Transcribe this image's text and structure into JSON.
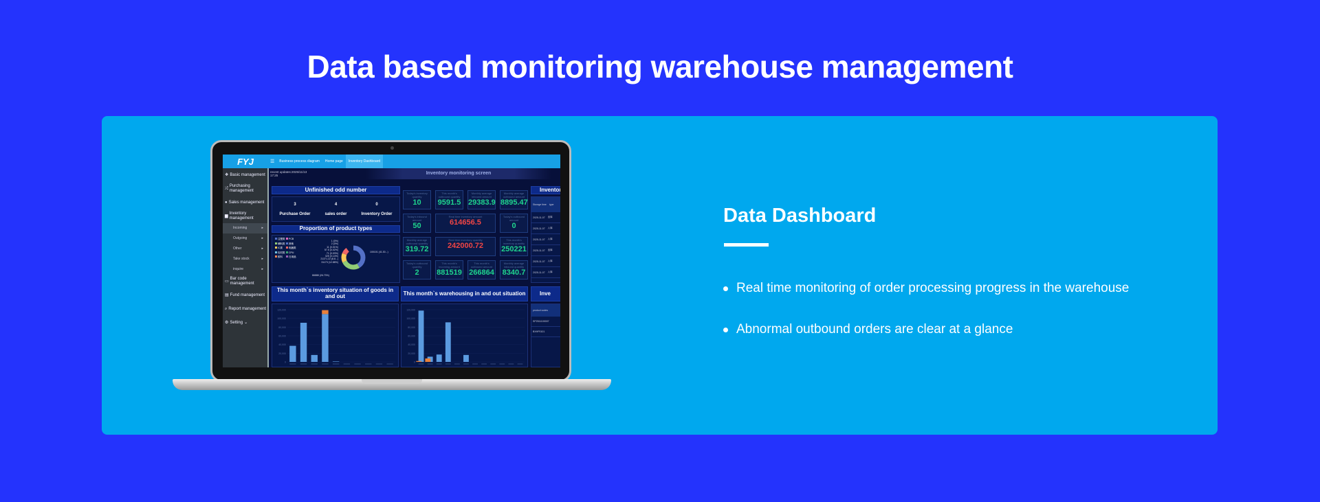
{
  "page_title": "Data based monitoring warehouse management",
  "feature": {
    "heading": "Data Dashboard",
    "bullets": [
      "Real time monitoring of order processing progress in the warehouse",
      "Abnormal outbound orders are clear at a glance"
    ]
  },
  "app": {
    "logo": "FYJ",
    "tabs": [
      "Business process diagram",
      "Home page",
      "Inventory Dashboard"
    ],
    "sidebar": [
      {
        "label": "Basic management",
        "icon": "cubes-icon"
      },
      {
        "label": "Purchasing management",
        "icon": "shuffle-icon"
      },
      {
        "label": "Sales management",
        "icon": "globe-icon"
      },
      {
        "label": "Inventory management",
        "icon": "truck-icon"
      }
    ],
    "sub_items": [
      "Incoming",
      "Outgoing",
      "Other",
      "Take stock",
      "inquire"
    ],
    "sidebar_bottom": [
      {
        "label": "Bar code management",
        "icon": "card-icon"
      },
      {
        "label": "Fund management",
        "icon": "calculator-icon"
      },
      {
        "label": "Report management",
        "icon": "search-icon"
      },
      {
        "label": "Setting",
        "icon": "gear-icon"
      }
    ],
    "updated": "recent updates:2025/11/13",
    "updated_time": "17:25",
    "screen_title": "Inventory monitoring screen",
    "unfinished": {
      "title": "Unfinished odd number",
      "items": [
        {
          "value": "3",
          "label": "Purchase Order"
        },
        {
          "value": "4",
          "label": "sales order"
        },
        {
          "value": "0",
          "label": "Inventory Order"
        }
      ]
    },
    "proportion": {
      "title": "Proportion of product types",
      "legend": [
        "注塑类",
        "PCB",
        "辅料类",
        "其他",
        "IC类",
        "电器类",
        "包材类",
        "CPU",
        "胶料",
        "日用品"
      ],
      "labels": [
        "1 (0%)",
        "2 (0%)",
        "11 (0.01%)",
        "57.5 (0.02%)",
        "71 (0.03%)",
        "325 (0.14%)",
        "21371.22 (8.8...)",
        "31173 (12.88%)",
        "86888 (26.73%)",
        "100101 (41.30...)"
      ]
    },
    "kpis": [
      {
        "label": "Today's inventory quantity",
        "value": "10"
      },
      {
        "label": "This month's outbound quantity",
        "value": "9591.5"
      },
      {
        "label": "Monthly average inbound amount",
        "value": "29383.9"
      },
      {
        "label": "Monthly average outbound amount",
        "value": "8895.47"
      },
      {
        "label": "Today's inbound amount",
        "value": "50"
      },
      {
        "label": "Real time inventory amount",
        "value": "614656.5"
      },
      {
        "label": "Today's outbound amount",
        "value": "0"
      },
      {
        "label": "Monthly average outbound quantity",
        "value": "319.72"
      },
      {
        "label": "Real time inventory quantity",
        "value": "242000.72"
      },
      {
        "label": "This month's inventory quantity",
        "value": "250221"
      },
      {
        "label": "Today's outbound quantity",
        "value": "2"
      },
      {
        "label": "This month's incoming amount",
        "value": "881519"
      },
      {
        "label": "This month's outbound amount",
        "value": "266864"
      },
      {
        "label": "Monthly average inbound quantity",
        "value": "8340.7"
      }
    ],
    "colors": {
      "kpi_green": "#1fd48e",
      "kpi_red": "#f04545",
      "bar_blue": "#5b9be0",
      "bar_orange": "#e8803a"
    },
    "right_panel": {
      "title": "Inventory",
      "headers": [
        "Storage time",
        "type"
      ],
      "rows": [
        [
          "2025-11-07",
          "出库"
        ],
        [
          "2025-11-07",
          "入库"
        ],
        [
          "2025-11-07",
          "入库"
        ],
        [
          "2025-11-07",
          "出库"
        ],
        [
          "2025-11-07",
          "入库"
        ],
        [
          "2025-11-07",
          "入库"
        ]
      ],
      "title2": "Inve",
      "headers2": [
        "product codes"
      ],
      "rows2": [
        "SP2511100007",
        "BXHP0101"
      ]
    },
    "chart_left_title": "This month`s inventory situation of goods in and out",
    "chart_right_title": "This month`s warehousing in and out situation"
  },
  "chart_data": [
    {
      "type": "bar",
      "title": "This month`s inventory situation of goods in and out",
      "ylim": [
        0,
        120000
      ],
      "yticks": [
        "0",
        "20,000",
        "40,000",
        "60,000",
        "80,000",
        "100,000",
        "120,000"
      ],
      "series": [
        {
          "values": [
            37000,
            90000,
            16000,
            110000,
            1000,
            0,
            0,
            0,
            0,
            0
          ]
        },
        {
          "values": [
            0,
            0,
            0,
            9000,
            0,
            0,
            0,
            0,
            0,
            0
          ]
        }
      ]
    },
    {
      "type": "bar",
      "title": "This month`s warehousing in and out situation",
      "ylim": [
        0,
        120000
      ],
      "yticks": [
        "0",
        "20,000",
        "40,000",
        "60,000",
        "80,000",
        "100,000",
        "120,000"
      ],
      "series": [
        {
          "values": [
            118000,
            12000,
            17000,
            91000,
            0,
            16000,
            0,
            0,
            0,
            0,
            0,
            0
          ]
        },
        {
          "values": [
            2000,
            8000,
            0,
            0,
            0,
            0,
            0,
            0,
            0,
            0,
            0,
            0
          ]
        }
      ]
    }
  ]
}
